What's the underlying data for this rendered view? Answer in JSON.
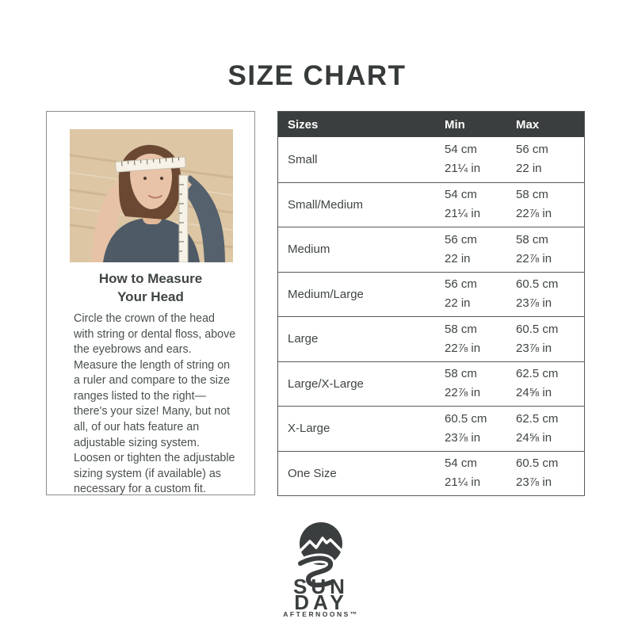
{
  "page": {
    "title": "SIZE CHART"
  },
  "measure_card": {
    "heading_line1": "How to Measure",
    "heading_line2": "Your Head",
    "body": "Circle the crown of the head with string or dental floss, above the eyebrows and ears. Measure the length of string on a ruler and compare to the size ranges listed to the right—there's your size! Many, but not all, of our hats feature an adjustable sizing system. Loosen or tighten the adjustable sizing system (if available) as necessary for a custom fit."
  },
  "size_table": {
    "columns": {
      "size": "Sizes",
      "min": "Min",
      "max": "Max"
    },
    "rows": [
      {
        "size": "Small",
        "min_cm": "54 cm",
        "min_in": "21¼ in",
        "max_cm": "56 cm",
        "max_in": "22 in"
      },
      {
        "size": "Small/Medium",
        "min_cm": "54 cm",
        "min_in": "21¼ in",
        "max_cm": "58 cm",
        "max_in": "22⅞ in"
      },
      {
        "size": "Medium",
        "min_cm": "56 cm",
        "min_in": "22 in",
        "max_cm": "58 cm",
        "max_in": "22⅞ in"
      },
      {
        "size": "Medium/Large",
        "min_cm": "56 cm",
        "min_in": "22 in",
        "max_cm": "60.5 cm",
        "max_in": "23⅞ in"
      },
      {
        "size": "Large",
        "min_cm": "58 cm",
        "min_in": "22⅞ in",
        "max_cm": "60.5 cm",
        "max_in": "23⅞ in"
      },
      {
        "size": "Large/X-Large",
        "min_cm": "58 cm",
        "min_in": "22⅞ in",
        "max_cm": "62.5 cm",
        "max_in": "24⅝ in"
      },
      {
        "size": "X-Large",
        "min_cm": "60.5 cm",
        "min_in": "23⅞ in",
        "max_cm": "62.5 cm",
        "max_in": "24⅝ in"
      },
      {
        "size": "One Size",
        "min_cm": "54 cm",
        "min_in": "21¼ in",
        "max_cm": "60.5 cm",
        "max_in": "23⅞ in"
      }
    ]
  },
  "logo": {
    "line1": "SUN",
    "line2": "DAY",
    "line3": "AFTERNOONS™"
  },
  "colors": {
    "title_text": "#363a3a",
    "table_header_bg": "#3a3e3e",
    "table_border": "#565a5a",
    "body_text": "#4a4f4f",
    "card_border": "#8d8d8d",
    "logo_dark": "#3a3e3e"
  }
}
